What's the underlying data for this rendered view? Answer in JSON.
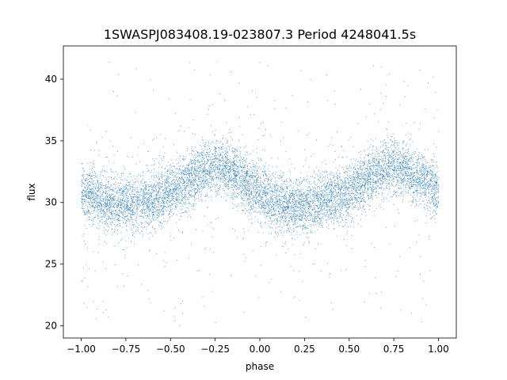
{
  "chart_data": {
    "type": "scatter",
    "title": "1SWASPJ083408.19-023807.3 Period 4248041.5s",
    "xlabel": "phase",
    "ylabel": "flux",
    "xlim": [
      -1.1,
      1.1
    ],
    "ylim": [
      19,
      42.7
    ],
    "x_ticks": [
      -1.0,
      -0.75,
      -0.5,
      -0.25,
      0.0,
      0.25,
      0.5,
      0.75,
      1.0
    ],
    "x_tick_labels": [
      "−1.00",
      "−0.75",
      "−0.50",
      "−0.25",
      "0.00",
      "0.25",
      "0.50",
      "0.75",
      "1.00"
    ],
    "y_ticks": [
      20,
      25,
      30,
      35,
      40
    ],
    "y_tick_labels": [
      "20",
      "25",
      "30",
      "35",
      "40"
    ],
    "grid": false,
    "legend": "none",
    "marker_color": "#1f77b4",
    "phase_range": [
      -1.0,
      1.0
    ],
    "trend": {
      "phase": [
        -1.0,
        -0.9,
        -0.8,
        -0.7,
        -0.6,
        -0.5,
        -0.4,
        -0.3,
        -0.25,
        -0.2,
        -0.1,
        0.0,
        0.1,
        0.2,
        0.3,
        0.4,
        0.5,
        0.6,
        0.7,
        0.75,
        0.8,
        0.9,
        1.0
      ],
      "flux": [
        31.0,
        30.3,
        29.8,
        29.9,
        30.2,
        30.8,
        31.8,
        32.7,
        33.0,
        32.8,
        31.8,
        30.8,
        30.0,
        29.6,
        29.9,
        30.3,
        30.9,
        31.9,
        32.8,
        33.0,
        32.7,
        31.9,
        31.0
      ],
      "scatter_sd": 1.1
    }
  }
}
